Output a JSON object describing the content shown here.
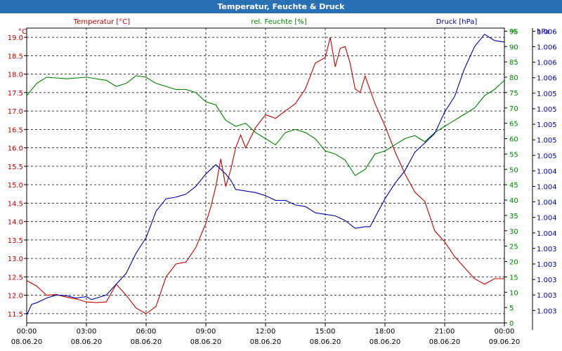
{
  "chart_data": {
    "type": "line",
    "title": "Temperatur, Feuchte & Druck",
    "x": {
      "start": "08.06.20 00:00",
      "end": "09.06.20 00:00",
      "tick_labels": [
        [
          "00:00",
          "08.06.20"
        ],
        [
          "03:00",
          "08.06.20"
        ],
        [
          "06:00",
          "08.06.20"
        ],
        [
          "09:00",
          "08.06.20"
        ],
        [
          "12:00",
          "08.06.20"
        ],
        [
          "15:00",
          "08.06.20"
        ],
        [
          "18:00",
          "08.06.20"
        ],
        [
          "21:00",
          "08.06.20"
        ],
        [
          "00:00",
          "09.06.20"
        ]
      ]
    },
    "axes": {
      "temperature": {
        "unit": "°C",
        "range": [
          11.25,
          19.25
        ],
        "ticks": [
          "11.5",
          "12.0",
          "12.5",
          "13.0",
          "13.5",
          "14.0",
          "14.5",
          "15.0",
          "15.5",
          "16.0",
          "16.5",
          "17.0",
          "17.5",
          "18.0",
          "18.5",
          "19.0"
        ]
      },
      "humidity": {
        "unit": "%",
        "range": [
          0,
          96
        ],
        "ticks": [
          "0",
          "5",
          "10",
          "15",
          "20",
          "25",
          "30",
          "35",
          "40",
          "45",
          "50",
          "55",
          "60",
          "65",
          "70",
          "75",
          "80",
          "85",
          "90",
          "95"
        ]
      },
      "pressure": {
        "unit": "hPa",
        "range": [
          0,
          19
        ],
        "ticks": [
          "1.003",
          "1.003",
          "1.003",
          "1.003",
          "1.003",
          "1.004",
          "1.004",
          "1.004",
          "1.004",
          "1.004",
          "1.005",
          "1.005",
          "1.005",
          "1.005",
          "1.005",
          "1.006",
          "1.006",
          "1.006",
          "1.006"
        ]
      }
    },
    "grid": true,
    "series": [
      {
        "name": "Temperatur [°C]",
        "axis": "temperature",
        "color": "#c00000",
        "x_hours": [
          0,
          0.5,
          1,
          1.5,
          2,
          2.5,
          3,
          3.5,
          4,
          4.5,
          5,
          5.5,
          6,
          6.5,
          7,
          7.5,
          8,
          8.5,
          9,
          9.25,
          9.5,
          9.75,
          10,
          10.25,
          10.5,
          10.75,
          11,
          11.5,
          12,
          12.5,
          13,
          13.5,
          14,
          14.5,
          15,
          15.25,
          15.5,
          15.75,
          16,
          16.25,
          16.5,
          16.75,
          17,
          17.5,
          18,
          18.5,
          19,
          19.5,
          20,
          20.5,
          21,
          21.5,
          22,
          22.5,
          23,
          23.5,
          24
        ],
        "values": [
          12.4,
          12.25,
          12.0,
          12.02,
          11.95,
          11.9,
          11.82,
          11.8,
          11.82,
          12.3,
          12.0,
          11.65,
          11.5,
          11.7,
          12.5,
          12.85,
          12.9,
          13.3,
          13.95,
          14.4,
          14.95,
          15.7,
          14.95,
          15.4,
          16.0,
          16.35,
          16.0,
          16.55,
          16.9,
          16.8,
          17.0,
          17.2,
          17.6,
          18.3,
          18.45,
          19.0,
          18.2,
          18.7,
          18.75,
          18.3,
          17.6,
          17.5,
          17.95,
          17.2,
          16.6,
          15.9,
          15.3,
          14.8,
          14.55,
          13.75,
          13.45,
          13.05,
          12.75,
          12.45,
          12.3,
          12.45,
          12.45
        ]
      },
      {
        "name": "rel. Feuchte [%]",
        "axis": "humidity",
        "color": "#008000",
        "x_hours": [
          0,
          0.5,
          1,
          2,
          3,
          4,
          4.5,
          5,
          5.5,
          6,
          6.5,
          7,
          7.5,
          8,
          8.5,
          9,
          9.5,
          10,
          10.5,
          11,
          11.5,
          12,
          12.5,
          13,
          13.5,
          14,
          14.5,
          15,
          15.5,
          16,
          16.5,
          17,
          17.5,
          18,
          18.5,
          19,
          19.5,
          20,
          20.5,
          21,
          21.5,
          22,
          22.5,
          23,
          23.5,
          24
        ],
        "values": [
          74,
          78,
          80,
          79.5,
          80,
          79,
          77,
          78,
          80.5,
          80,
          78,
          77,
          76,
          76,
          75,
          72,
          71,
          66,
          64,
          65,
          62,
          60,
          58,
          62,
          63,
          62,
          60,
          56,
          55,
          53,
          48,
          50,
          55,
          56,
          58,
          60,
          61,
          59,
          62,
          64,
          66,
          68,
          70,
          74,
          76,
          79
        ]
      },
      {
        "name": "Druck [hPa]",
        "axis": "pressure",
        "color": "#0000a0",
        "x_hours": [
          0,
          0.25,
          0.5,
          1,
          1.5,
          2,
          2.5,
          3,
          3.25,
          3.5,
          4,
          4.5,
          5,
          5.5,
          6,
          6.5,
          7,
          7.5,
          8,
          8.5,
          9,
          9.5,
          10,
          10.25,
          10.5,
          11,
          11.5,
          12,
          12.5,
          13,
          13.5,
          14,
          14.5,
          15,
          15.5,
          16,
          16.5,
          17,
          17.25,
          17.5,
          18,
          18.5,
          19,
          19.5,
          20,
          20.5,
          21,
          21.5,
          22,
          22.5,
          23,
          23.5,
          24
        ],
        "values": [
          0.5,
          1.2,
          1.3,
          1.6,
          1.8,
          1.75,
          1.6,
          1.7,
          1.5,
          1.6,
          1.8,
          2.5,
          3.2,
          4.5,
          5.5,
          7.2,
          8.0,
          8.1,
          8.3,
          8.8,
          9.6,
          10.2,
          9.6,
          9.2,
          8.6,
          8.5,
          8.4,
          8.2,
          7.9,
          7.9,
          7.6,
          7.5,
          7.1,
          7.0,
          6.9,
          6.6,
          6.1,
          6.2,
          6.2,
          6.8,
          8.0,
          9.0,
          9.8,
          11.0,
          11.6,
          12.2,
          13.6,
          14.6,
          16.4,
          17.8,
          18.6,
          18.2,
          18.1
        ]
      }
    ]
  }
}
